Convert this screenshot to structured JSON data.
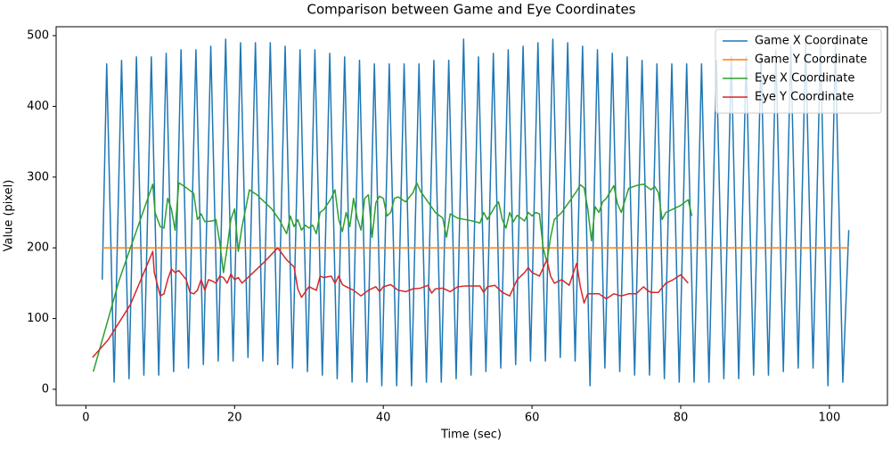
{
  "chart_data": {
    "type": "line",
    "title": "Comparison between Game and Eye Coordinates",
    "xlabel": "Time (sec)",
    "ylabel": "Value (pixel)",
    "xlim": [
      -4,
      107.8
    ],
    "ylim": [
      -22.7,
      512.6
    ],
    "xticks": [
      0,
      20,
      40,
      60,
      80,
      100
    ],
    "yticks": [
      0,
      100,
      200,
      300,
      400,
      500
    ],
    "grid": false,
    "legend": "upper right",
    "series": [
      {
        "name": "Game X Coordinate",
        "color": "#1f77b4",
        "x": [
          2.2,
          2.8,
          3.8,
          4.8,
          5.8,
          6.8,
          7.8,
          8.8,
          9.8,
          10.8,
          11.8,
          12.8,
          13.8,
          14.8,
          15.8,
          16.8,
          17.8,
          18.8,
          19.8,
          20.8,
          21.8,
          22.8,
          23.8,
          24.8,
          25.8,
          26.8,
          27.8,
          28.8,
          29.8,
          30.8,
          31.8,
          32.8,
          33.8,
          34.8,
          35.8,
          36.8,
          37.8,
          38.8,
          39.8,
          40.8,
          41.8,
          42.8,
          43.8,
          44.8,
          45.8,
          46.8,
          47.8,
          48.8,
          49.8,
          50.8,
          51.8,
          52.8,
          53.8,
          54.8,
          55.8,
          56.8,
          57.8,
          58.8,
          59.8,
          60.8,
          61.8,
          62.8,
          63.8,
          64.8,
          65.8,
          66.8,
          67.8,
          68.8,
          69.8,
          70.8,
          71.8,
          72.8,
          73.8,
          74.8,
          75.8,
          76.8,
          77.8,
          78.8,
          79.8,
          80.8,
          81.8,
          82.8,
          83.8,
          84.8,
          85.8,
          86.8,
          87.8,
          88.8,
          89.8,
          90.8,
          91.8,
          92.8,
          93.8,
          94.8,
          95.8,
          96.8,
          97.8,
          98.8,
          99.8,
          100.8,
          101.8,
          102.6
        ],
        "values": [
          155,
          460,
          10,
          465,
          15,
          470,
          20,
          470,
          20,
          475,
          25,
          480,
          30,
          480,
          35,
          485,
          40,
          495,
          40,
          490,
          45,
          490,
          40,
          490,
          35,
          485,
          30,
          480,
          25,
          480,
          20,
          475,
          15,
          470,
          10,
          465,
          10,
          460,
          5,
          460,
          5,
          460,
          5,
          460,
          10,
          465,
          10,
          465,
          15,
          495,
          20,
          470,
          25,
          475,
          30,
          480,
          35,
          485,
          40,
          490,
          40,
          495,
          45,
          490,
          40,
          485,
          5,
          480,
          30,
          475,
          25,
          470,
          20,
          465,
          20,
          460,
          15,
          460,
          10,
          460,
          10,
          460,
          10,
          465,
          15,
          470,
          15,
          470,
          20,
          475,
          20,
          480,
          25,
          485,
          30,
          490,
          30,
          490,
          5,
          485,
          10,
          225
        ]
      },
      {
        "name": "Game Y Coordinate",
        "color": "#ff7f0e",
        "x": [
          2.2,
          102.6
        ],
        "values": [
          200,
          200
        ]
      },
      {
        "name": "Eye X Coordinate",
        "color": "#2ca02c",
        "x": [
          1,
          4.5,
          8.5,
          9,
          9.3,
          10,
          10.5,
          11,
          11.5,
          12,
          12.5,
          13.5,
          14.5,
          15,
          15.5,
          16,
          17,
          17.5,
          18,
          18.5,
          19,
          19.5,
          20,
          20.5,
          21,
          22,
          23,
          24,
          25,
          26,
          27,
          27.5,
          28,
          28.5,
          29,
          29.5,
          30,
          30.5,
          31,
          31.5,
          32,
          33,
          33.5,
          34,
          34.5,
          35,
          35.5,
          36,
          36.5,
          37,
          37.5,
          38,
          38.5,
          39,
          39.5,
          40,
          40.5,
          41,
          41.5,
          42,
          43,
          44,
          44.5,
          45,
          46,
          47,
          48,
          48.5,
          49,
          50,
          51,
          52,
          53,
          53.5,
          54,
          55,
          55.5,
          56,
          56.5,
          57,
          57.5,
          58,
          59,
          59.5,
          60,
          60.5,
          61,
          61.5,
          62,
          62.5,
          63,
          64,
          65,
          66,
          66.5,
          67,
          67.5,
          68,
          68.5,
          69,
          69.5,
          70,
          71,
          71.5,
          72,
          73,
          74,
          75,
          76,
          76.5,
          77,
          77.5,
          78,
          79,
          80,
          81,
          81.5
        ],
        "values": [
          25,
          155,
          275,
          290,
          250,
          230,
          228,
          270,
          255,
          225,
          292,
          285,
          277,
          240,
          248,
          237,
          238,
          240,
          208,
          165,
          200,
          240,
          255,
          195,
          230,
          282,
          275,
          265,
          255,
          240,
          220,
          245,
          230,
          240,
          225,
          232,
          228,
          232,
          220,
          250,
          254,
          270,
          282,
          240,
          223,
          250,
          230,
          270,
          242,
          225,
          270,
          275,
          215,
          264,
          273,
          270,
          245,
          250,
          270,
          272,
          265,
          278,
          292,
          280,
          265,
          250,
          242,
          215,
          248,
          242,
          240,
          238,
          235,
          250,
          240,
          258,
          265,
          240,
          228,
          250,
          237,
          246,
          238,
          250,
          245,
          250,
          248,
          200,
          180,
          215,
          240,
          250,
          265,
          280,
          289,
          285,
          255,
          210,
          258,
          250,
          265,
          270,
          288,
          262,
          250,
          284,
          288,
          290,
          282,
          287,
          278,
          240,
          250,
          255,
          260,
          268,
          245
        ]
      },
      {
        "name": "Eye Y Coordinate",
        "color": "#d62728",
        "x": [
          0.9,
          3,
          6,
          9,
          9.2,
          10,
          10.5,
          11,
          11.5,
          12,
          12.5,
          13.5,
          14,
          14.5,
          15,
          15.5,
          16,
          16.5,
          17,
          17.5,
          18,
          18.5,
          19,
          19.5,
          20,
          20.5,
          21,
          22,
          24,
          25.8,
          27,
          28,
          28.5,
          29,
          30,
          31,
          31.5,
          32,
          33,
          33.5,
          34,
          34.5,
          35,
          36,
          37,
          38,
          39,
          39.5,
          40,
          41,
          42,
          43,
          44,
          45,
          46,
          46.5,
          47,
          48,
          49,
          50,
          51,
          52,
          53,
          53.5,
          54,
          55,
          56,
          57,
          58,
          59,
          59.5,
          60,
          61,
          62,
          62.5,
          63,
          64,
          65,
          66,
          66.5,
          67,
          67.5,
          68,
          69,
          70,
          71,
          72,
          73,
          74,
          75,
          75.5,
          76,
          77,
          78,
          79,
          80,
          81
        ],
        "values": [
          45,
          70,
          120,
          195,
          165,
          132,
          135,
          155,
          170,
          165,
          168,
          155,
          137,
          135,
          140,
          155,
          140,
          155,
          153,
          150,
          160,
          158,
          150,
          163,
          155,
          158,
          150,
          160,
          180,
          200,
          183,
          173,
          142,
          130,
          145,
          140,
          160,
          158,
          160,
          150,
          160,
          148,
          145,
          140,
          132,
          140,
          145,
          138,
          145,
          148,
          140,
          138,
          142,
          143,
          147,
          136,
          142,
          143,
          138,
          145,
          146,
          146,
          146,
          137,
          145,
          147,
          137,
          132,
          155,
          165,
          172,
          165,
          160,
          183,
          160,
          150,
          155,
          147,
          178,
          145,
          122,
          135,
          135,
          135,
          128,
          135,
          132,
          135,
          135,
          145,
          140,
          137,
          137,
          150,
          155,
          162,
          150
        ]
      }
    ]
  }
}
